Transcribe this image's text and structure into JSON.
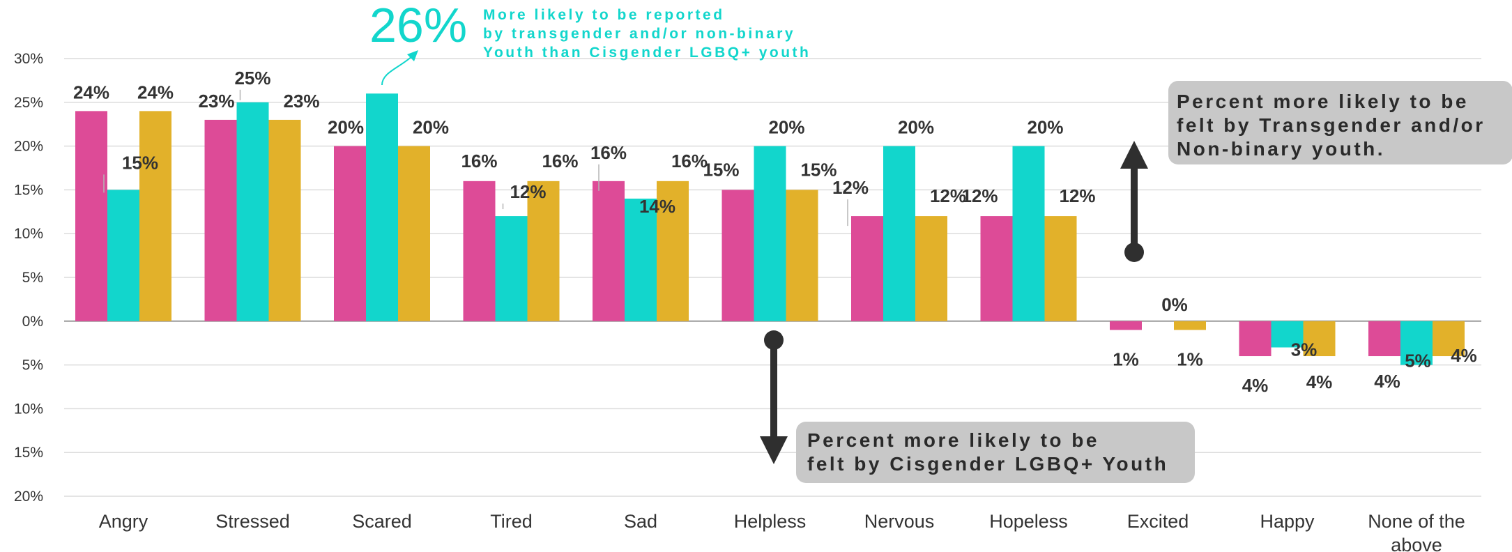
{
  "colors": {
    "series_1": "#dd4b97",
    "series_2": "#12d6cc",
    "series_3": "#e2b12a",
    "headline": "#12d6cc",
    "callout_bg": "#c8c8c8",
    "arrow": "#2f2f2f",
    "grid": "#dcdcdc",
    "text": "#333333"
  },
  "headline": {
    "big_value": "26%",
    "lines": [
      "More likely to be reported",
      "by transgender and/or non-binary",
      "Youth than Cisgender LGBQ+ youth"
    ]
  },
  "callout_up": {
    "lines": [
      "Percent more likely to be",
      "felt by Transgender and/or",
      "Non-binary youth."
    ]
  },
  "callout_down": {
    "lines": [
      "Percent more likely to be",
      "felt by Cisgender LGBQ+ Youth"
    ]
  },
  "chart_data": {
    "type": "bar",
    "categories": [
      "Angry",
      "Stressed",
      "Scared",
      "Tired",
      "Sad",
      "Helpless",
      "Nervous",
      "Hopeless",
      "Excited",
      "Happy",
      "None of the above"
    ],
    "series": [
      {
        "values": [
          24,
          23,
          20,
          16,
          16,
          15,
          12,
          12,
          -1,
          -4,
          -4
        ],
        "labels": [
          "24%",
          "23%",
          "20%",
          "16%",
          "16%",
          "15%",
          "12%",
          "12%",
          "1%",
          "4%",
          "4%"
        ]
      },
      {
        "values": [
          15,
          25,
          26,
          12,
          14,
          20,
          20,
          20,
          0,
          -3,
          -5
        ],
        "labels": [
          "15%",
          "25%",
          "",
          "12%",
          "14%",
          "20%",
          "20%",
          "20%",
          "0%",
          "3%",
          "5%"
        ]
      },
      {
        "values": [
          24,
          23,
          20,
          16,
          16,
          15,
          12,
          12,
          -1,
          -4,
          -4
        ],
        "labels": [
          "24%",
          "23%",
          "20%",
          "16%",
          "16%",
          "15%",
          "12%",
          "12%",
          "1%",
          "4%",
          "4%"
        ]
      }
    ],
    "ylim": [
      -20,
      30
    ],
    "y_ticks": [
      30,
      25,
      20,
      15,
      10,
      5,
      0,
      -5,
      -10,
      -15,
      -20
    ],
    "y_tick_labels": [
      "30%",
      "25%",
      "20%",
      "15%",
      "10%",
      "5%",
      "0%",
      "5%",
      "10%",
      "15%",
      "20%"
    ],
    "grid": true,
    "legend": "none"
  }
}
